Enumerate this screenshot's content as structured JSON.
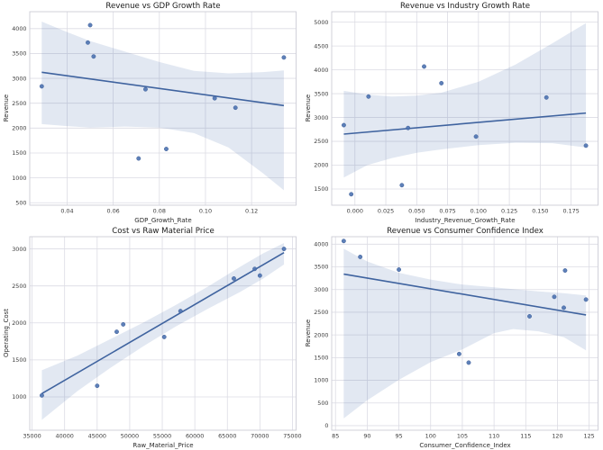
{
  "figure": {
    "background": "#ffffff",
    "theme": {
      "point_color": "#4c72b0",
      "point_edge_color": "#3e5f99",
      "line_color": "#3f639f",
      "band_color": "#4c72b0",
      "band_opacity": 0.16,
      "grid_color": "#dcdce4",
      "spine_color": "#ccccd6",
      "text_color": "#262626"
    }
  },
  "chart_data": [
    {
      "type": "scatter",
      "title": "Revenue vs GDP Growth Rate",
      "xlabel": "GDP_Growth_Rate",
      "ylabel": "Revenue",
      "grid": true,
      "legend_position": "none",
      "xlim": [
        0.0238,
        0.1393
      ],
      "ylim": [
        450,
        4340
      ],
      "xticks": {
        "values": [
          0.04,
          0.06,
          0.08,
          0.1,
          0.12
        ],
        "labels": [
          "0.04",
          "0.06",
          "0.08",
          "0.10",
          "0.12"
        ]
      },
      "yticks": {
        "values": [
          500,
          1000,
          1500,
          2000,
          2500,
          3000,
          3500,
          4000
        ],
        "labels": [
          "500",
          "1000",
          "1500",
          "2000",
          "2500",
          "3000",
          "3500",
          "4000"
        ]
      },
      "points": {
        "x": [
          0.029,
          0.049,
          0.05,
          0.0515,
          0.071,
          0.074,
          0.083,
          0.104,
          0.113,
          0.134
        ],
        "y": [
          2840,
          3720,
          4070,
          3440,
          1390,
          2780,
          1580,
          2600,
          2410,
          3420
        ]
      },
      "regression_line": {
        "x": [
          0.029,
          0.134
        ],
        "y": [
          3122,
          2453
        ]
      },
      "confidence_band": {
        "x": [
          0.029,
          0.04,
          0.05,
          0.065,
          0.08,
          0.095,
          0.11,
          0.125,
          0.134
        ],
        "upper": [
          4140,
          3930,
          3750,
          3540,
          3330,
          3150,
          3100,
          3125,
          3160
        ],
        "lower": [
          2080,
          2040,
          2010,
          2030,
          2010,
          1900,
          1610,
          1090,
          750
        ]
      }
    },
    {
      "type": "scatter",
      "title": "Revenue vs Industry Growth Rate",
      "xlabel": "Industry_Revenue_Growth_Rate",
      "ylabel": "Revenue",
      "grid": true,
      "legend_position": "none",
      "xlim": [
        -0.0188,
        0.1968
      ],
      "ylim": [
        1160,
        5220
      ],
      "xticks": {
        "values": [
          0.0,
          0.025,
          0.05,
          0.075,
          0.1,
          0.125,
          0.15,
          0.175
        ],
        "labels": [
          "0.000",
          "0.025",
          "0.050",
          "0.075",
          "0.100",
          "0.125",
          "0.150",
          "0.175"
        ]
      },
      "yticks": {
        "values": [
          1500,
          2000,
          2500,
          3000,
          3500,
          4000,
          4500,
          5000
        ],
        "labels": [
          "1500",
          "2000",
          "2500",
          "3000",
          "3500",
          "4000",
          "4500",
          "5000"
        ]
      },
      "points": {
        "x": [
          -0.009,
          -0.003,
          0.011,
          0.038,
          0.043,
          0.056,
          0.07,
          0.098,
          0.155,
          0.187
        ],
        "y": [
          2840,
          1390,
          3440,
          1580,
          2780,
          4070,
          3720,
          2600,
          3420,
          2410
        ]
      },
      "regression_line": {
        "x": [
          -0.009,
          0.187
        ],
        "y": [
          2652,
          3093
        ]
      },
      "confidence_band": {
        "x": [
          -0.009,
          0.01,
          0.03,
          0.05,
          0.07,
          0.1,
          0.13,
          0.16,
          0.187
        ],
        "upper": [
          3560,
          3480,
          3440,
          3460,
          3520,
          3750,
          4110,
          4560,
          4980
        ],
        "lower": [
          1740,
          2000,
          2150,
          2260,
          2330,
          2420,
          2470,
          2460,
          2370
        ]
      }
    },
    {
      "type": "scatter",
      "title": "Cost vs Raw Material Price",
      "xlabel": "Raw_Material_Price",
      "ylabel": "Operating_Cost",
      "grid": true,
      "legend_position": "none",
      "xlim": [
        34640,
        75560
      ],
      "ylim": [
        550,
        3165
      ],
      "xticks": {
        "values": [
          35000,
          40000,
          45000,
          50000,
          55000,
          60000,
          65000,
          70000,
          75000
        ],
        "labels": [
          "35000",
          "40000",
          "45000",
          "50000",
          "55000",
          "60000",
          "65000",
          "70000",
          "75000"
        ]
      },
      "yticks": {
        "values": [
          1000,
          1500,
          2000,
          2500,
          3000
        ],
        "labels": [
          "1000",
          "1500",
          "2000",
          "2500",
          "3000"
        ]
      },
      "points": {
        "x": [
          36500,
          45000,
          48000,
          49000,
          55300,
          57800,
          66000,
          69200,
          70000,
          73700
        ],
        "y": [
          1020,
          1150,
          1880,
          1980,
          1810,
          2160,
          2600,
          2730,
          2640,
          3000
        ]
      },
      "regression_line": {
        "x": [
          36500,
          73700
        ],
        "y": [
          1045,
          2950
        ]
      },
      "confidence_band": {
        "x": [
          36500,
          42000,
          47000,
          52000,
          57050,
          62000,
          67000,
          70500,
          73700
        ],
        "upper": [
          1360,
          1560,
          1780,
          2000,
          2240,
          2490,
          2760,
          2940,
          3080
        ],
        "lower": [
          690,
          1080,
          1390,
          1680,
          1950,
          2190,
          2420,
          2600,
          2790
        ]
      }
    },
    {
      "type": "scatter",
      "title": "Revenue vs Consumer Confidence Index",
      "xlabel": "Consumer_Confidence_Index",
      "ylabel": "Revenue",
      "grid": true,
      "legend_position": "none",
      "xlim": [
        84.4,
        126.4
      ],
      "ylim": [
        -100,
        4165
      ],
      "xticks": {
        "values": [
          85,
          90,
          95,
          100,
          105,
          110,
          115,
          120,
          125
        ],
        "labels": [
          "85",
          "90",
          "95",
          "100",
          "105",
          "110",
          "115",
          "120",
          "125"
        ]
      },
      "yticks": {
        "values": [
          0,
          500,
          1000,
          1500,
          2000,
          2500,
          3000,
          3500,
          4000
        ],
        "labels": [
          "0",
          "500",
          "1000",
          "1500",
          "2000",
          "2500",
          "3000",
          "3500",
          "4000"
        ]
      },
      "points": {
        "x": [
          86.3,
          88.9,
          95.0,
          104.5,
          106.0,
          115.6,
          119.5,
          121.0,
          121.2,
          124.5
        ],
        "y": [
          4070,
          3720,
          3440,
          1580,
          1390,
          2410,
          2840,
          2600,
          3420,
          2780
        ]
      },
      "regression_line": {
        "x": [
          86.3,
          124.5
        ],
        "y": [
          3340,
          2440
        ]
      },
      "confidence_band": {
        "x": [
          86.3,
          90,
          95,
          100,
          105,
          110,
          113,
          117,
          121,
          124.5
        ],
        "upper": [
          3900,
          3620,
          3370,
          3220,
          3110,
          3050,
          3010,
          2960,
          2920,
          2870
        ],
        "lower": [
          160,
          560,
          1010,
          1400,
          1680,
          2040,
          2130,
          2080,
          1950,
          1660
        ]
      }
    }
  ]
}
